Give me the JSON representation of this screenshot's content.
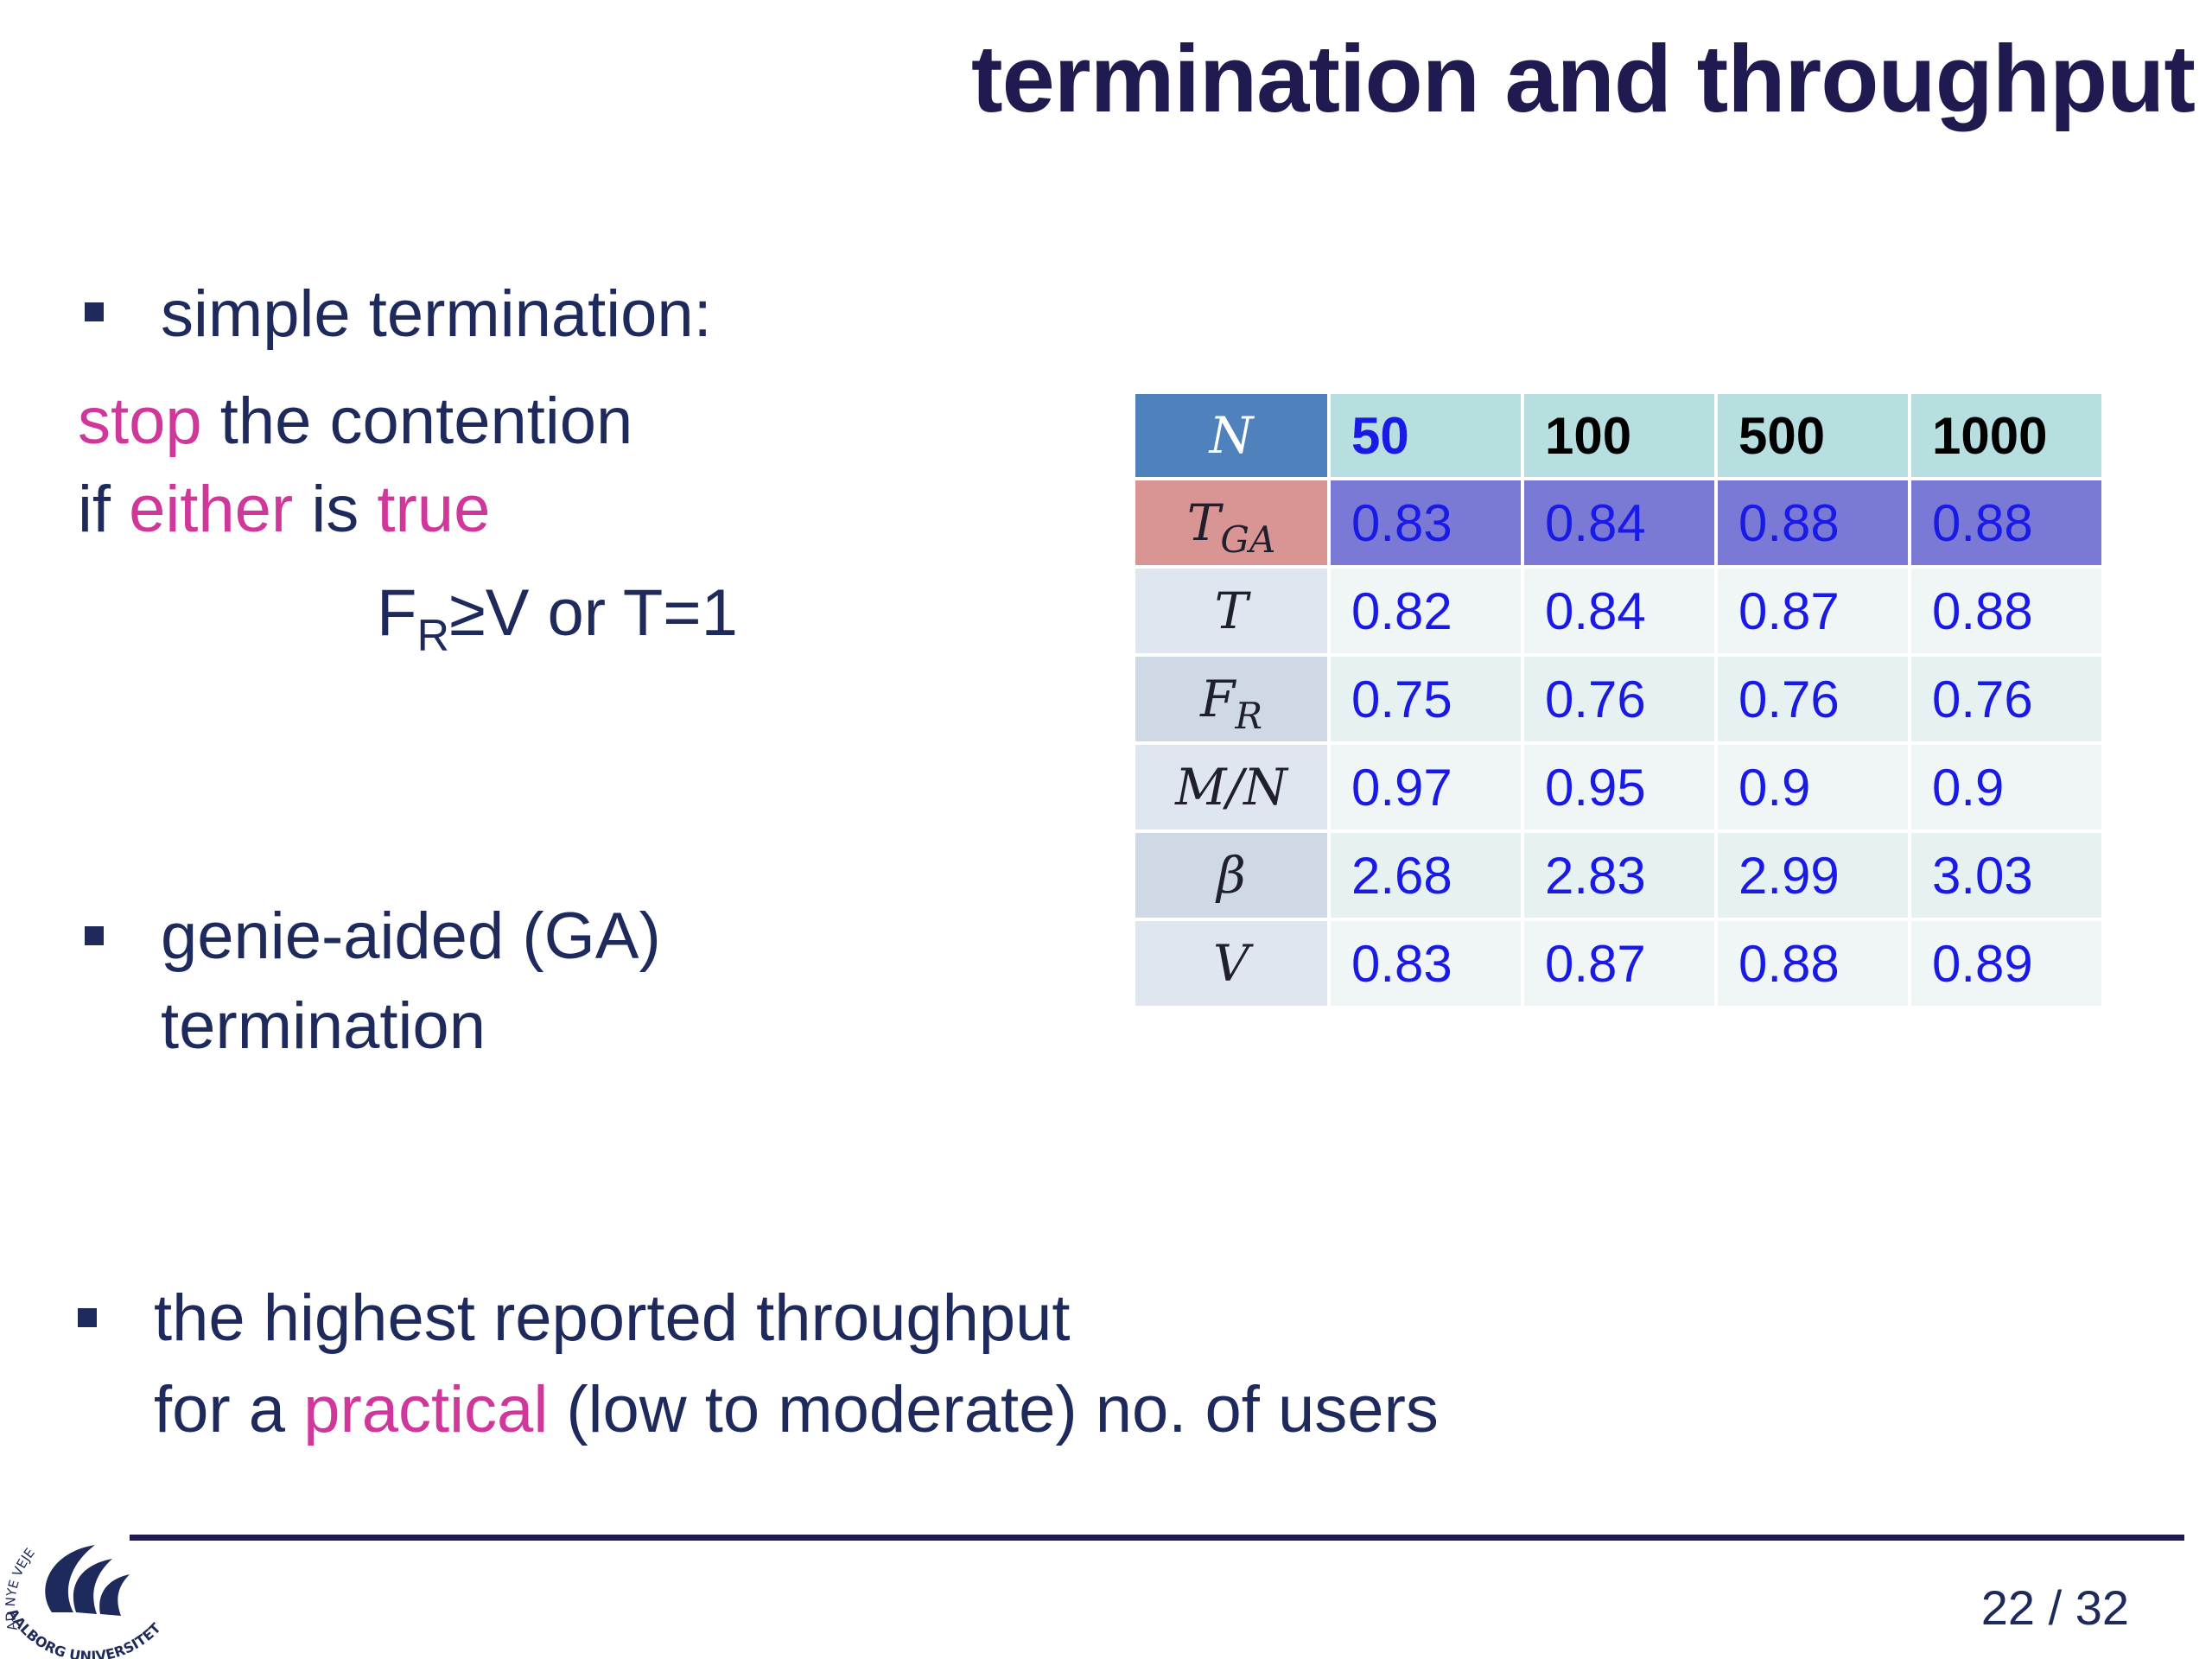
{
  "slide": {
    "title": "termination and throughput",
    "page": "22 / 32"
  },
  "bullets": {
    "b1": "simple termination:",
    "stop_line": {
      "p1": "stop",
      "p2": " the contention"
    },
    "either_line": {
      "p1": "if ",
      "p2": "either",
      "p3": " is ",
      "p4": "true"
    },
    "condition": {
      "f": "F",
      "sub": "R",
      "rest": "≥V or T=1"
    },
    "b2_line1": "genie-aided (GA)",
    "b2_line2": "termination",
    "b3_line1": "the highest reported throughput",
    "b3_line2": {
      "p1": "for a ",
      "p2": "practical",
      "p3": " (low to moderate) no. of users"
    }
  },
  "table": {
    "header": {
      "label": "N",
      "cols": [
        "50",
        "100",
        "500",
        "1000"
      ]
    },
    "rows": [
      {
        "label": "T",
        "sub": "GA",
        "values": [
          "0.83",
          "0.84",
          "0.88",
          "0.88"
        ]
      },
      {
        "label": "T",
        "sub": "",
        "values": [
          "0.82",
          "0.84",
          "0.87",
          "0.88"
        ]
      },
      {
        "label": "F",
        "sub": "R",
        "values": [
          "0.75",
          "0.76",
          "0.76",
          "0.76"
        ]
      },
      {
        "label": "M/N",
        "sub": "",
        "values": [
          "0.97",
          "0.95",
          "0.9",
          "0.9"
        ]
      },
      {
        "label": "β",
        "sub": "",
        "values": [
          "2.68",
          "2.83",
          "2.99",
          "3.03"
        ]
      },
      {
        "label": "V",
        "sub": "",
        "values": [
          "0.83",
          "0.87",
          "0.88",
          "0.89"
        ]
      }
    ]
  },
  "logo": {
    "arc_text_top": "AD NYE VEJE",
    "arc_text_bottom": "AALBORG UNIVERSITET",
    "color": "#1f2a5c"
  },
  "colors": {
    "title": "#1f1a4f",
    "body_text": "#1f2a5c",
    "accent_pink": "#d0379a",
    "table_value": "#1a1ae6",
    "header_blue": "#4f81bd",
    "tga_row": "#7b79d6",
    "tga_label": "#d99594"
  }
}
